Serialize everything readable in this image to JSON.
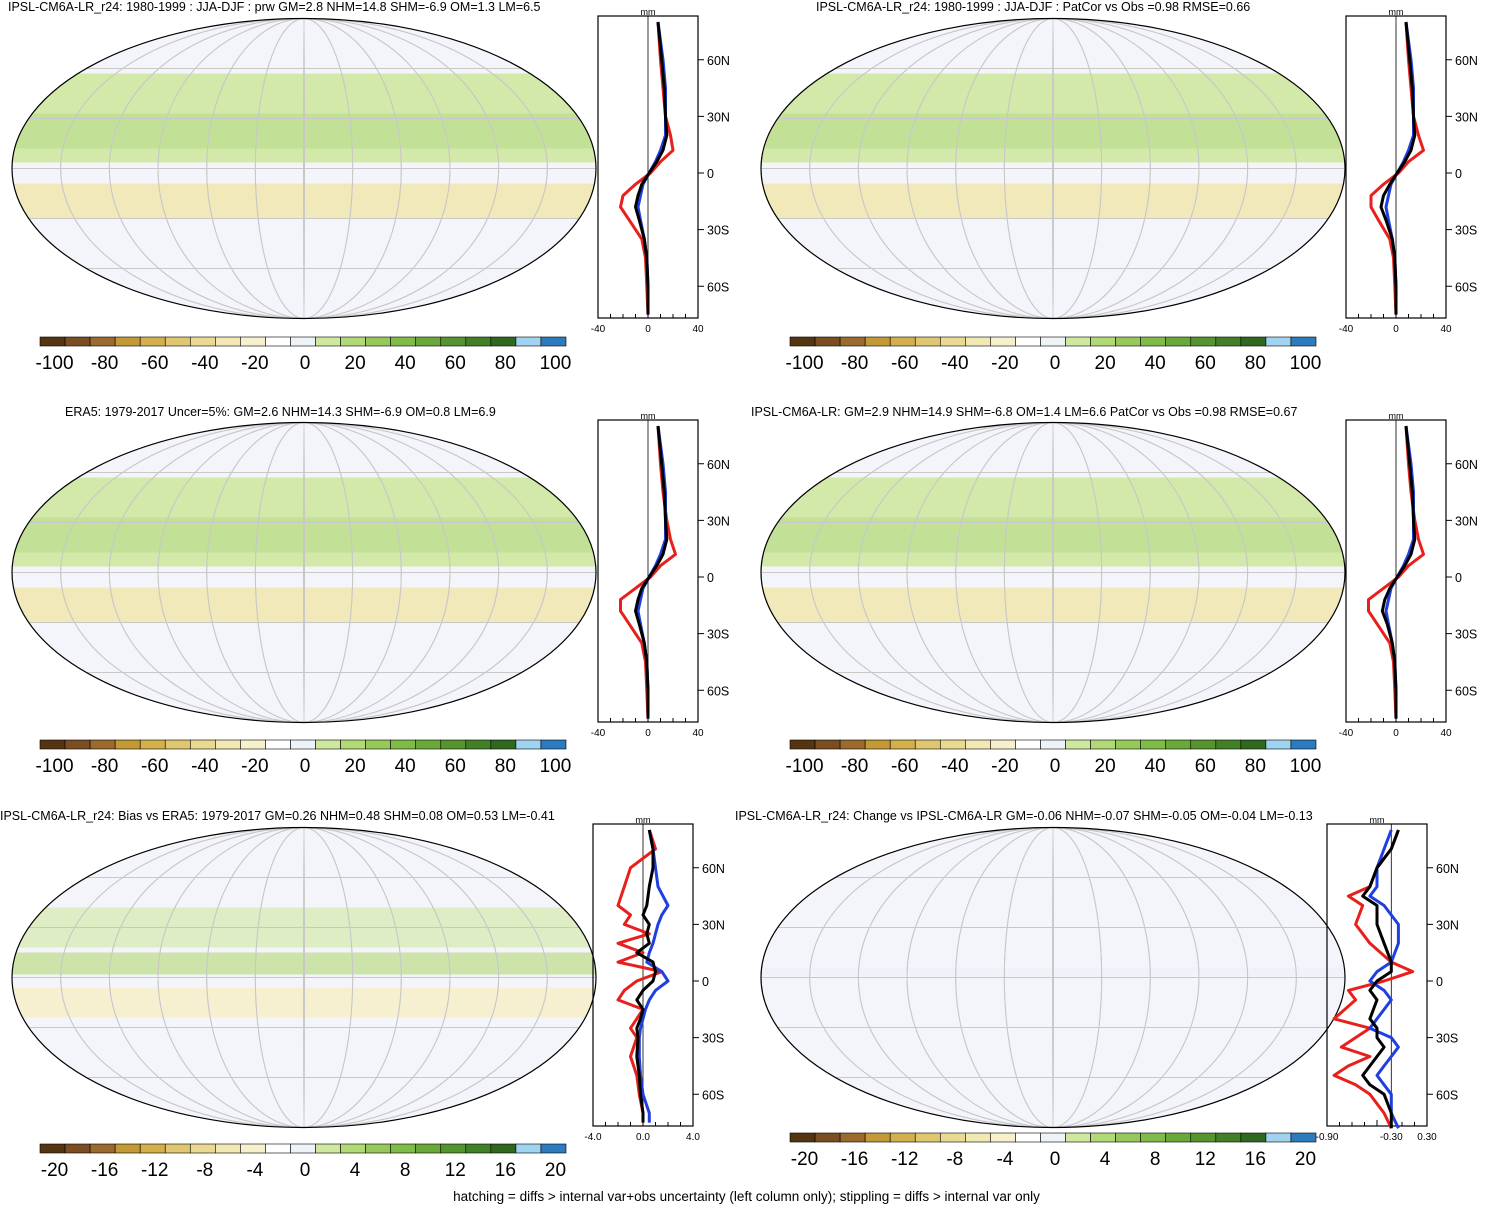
{
  "footer": "hatching = diffs > internal var+obs uncertainty (left column only); stippling = diffs > internal var only",
  "colors": {
    "ocean": "#f4f5fb",
    "land_line": "#000000",
    "grid": "#c8c8c8",
    "red_line": "#e8201c",
    "blue_line": "#1f3fe0",
    "black_line": "#000000"
  },
  "palette": [
    "#553511",
    "#7a4e22",
    "#9a6a2e",
    "#c39a36",
    "#d4b04d",
    "#dfc772",
    "#e9d992",
    "#f1e8b3",
    "#f6f0cc",
    "#ffffff",
    "#eef3f8",
    "#cfe8a0",
    "#b1d975",
    "#97c95a",
    "#7fbb47",
    "#6aa83a",
    "#559530",
    "#418027",
    "#30681f",
    "#9fd3f0",
    "#2c7bbf"
  ],
  "panels": [
    {
      "id": "p1",
      "title": "IPSL-CM6A-LR_r24: 1980-1999 : JJA-DJF : prw GM=2.8 NHM=14.8 SHM=-6.9 OM=1.3 LM=6.5",
      "colorbar_labels": [
        "-100",
        "-80",
        "-60",
        "-40",
        "-20",
        "0",
        "20",
        "40",
        "60",
        "80",
        "100"
      ],
      "profile": {
        "unit": "mm",
        "xlim": [
          -40,
          40
        ],
        "x_ticklabels": [
          "-40",
          "0",
          "40"
        ],
        "lat_ticklabels": [
          "60N",
          "30N",
          "0",
          "30S",
          "60S"
        ],
        "series": [
          {
            "color": "red",
            "lat": [
              80,
              60,
              45,
              30,
              20,
              12,
              6,
              0,
              -6,
              -12,
              -18,
              -25,
              -35,
              -45,
              -60,
              -75
            ],
            "values": [
              8,
              10,
              12,
              14,
              18,
              20,
              10,
              2,
              -10,
              -20,
              -22,
              -15,
              -5,
              -2,
              -1,
              0
            ]
          },
          {
            "color": "blue",
            "lat": [
              80,
              60,
              45,
              30,
              20,
              12,
              6,
              0,
              -6,
              -12,
              -18,
              -25,
              -35,
              -45,
              -60,
              -75
            ],
            "values": [
              8,
              12,
              14,
              14,
              14,
              10,
              6,
              1,
              -4,
              -6,
              -8,
              -6,
              -3,
              -1,
              0,
              0
            ]
          },
          {
            "color": "black",
            "lat": [
              80,
              60,
              45,
              30,
              20,
              12,
              6,
              0,
              -6,
              -12,
              -18,
              -25,
              -35,
              -45,
              -60,
              -75
            ],
            "values": [
              8,
              11,
              13,
              14,
              15,
              12,
              7,
              1,
              -5,
              -8,
              -10,
              -7,
              -3,
              -1,
              0,
              0
            ]
          }
        ]
      }
    },
    {
      "id": "p2",
      "title": "IPSL-CM6A-LR_r24: 1980-1999 : JJA-DJF : PatCor vs Obs =0.98 RMSE=0.66",
      "colorbar_labels": [
        "-100",
        "-80",
        "-60",
        "-40",
        "-20",
        "0",
        "20",
        "40",
        "60",
        "80",
        "100"
      ],
      "profile": {
        "unit": "mm",
        "xlim": [
          -40,
          40
        ],
        "x_ticklabels": [
          "-40",
          "0",
          "40"
        ],
        "lat_ticklabels": [
          "60N",
          "30N",
          "0",
          "30S",
          "60S"
        ],
        "series": [
          {
            "color": "red",
            "lat": [
              80,
              60,
              45,
              30,
              20,
              12,
              6,
              0,
              -6,
              -12,
              -18,
              -25,
              -35,
              -45,
              -60,
              -75
            ],
            "values": [
              8,
              10,
              12,
              14,
              18,
              22,
              10,
              2,
              -10,
              -20,
              -20,
              -14,
              -5,
              -2,
              -1,
              0
            ]
          },
          {
            "color": "blue",
            "lat": [
              80,
              60,
              45,
              30,
              20,
              12,
              6,
              0,
              -6,
              -12,
              -18,
              -25,
              -35,
              -45,
              -60,
              -75
            ],
            "values": [
              8,
              12,
              14,
              14,
              14,
              10,
              6,
              1,
              -4,
              -6,
              -8,
              -6,
              -3,
              -1,
              0,
              0
            ]
          },
          {
            "color": "black",
            "lat": [
              80,
              60,
              45,
              30,
              20,
              12,
              6,
              0,
              -6,
              -12,
              -18,
              -25,
              -35,
              -45,
              -60,
              -75
            ],
            "values": [
              8,
              11,
              13,
              14,
              15,
              12,
              7,
              1,
              -5,
              -10,
              -12,
              -8,
              -3,
              -1,
              0,
              0
            ]
          }
        ]
      }
    },
    {
      "id": "p3",
      "title": "ERA5: 1979-2017 Uncer=5%: GM=2.6 NHM=14.3 SHM=-6.9 OM=0.8 LM=6.9",
      "colorbar_labels": [
        "-100",
        "-80",
        "-60",
        "-40",
        "-20",
        "0",
        "20",
        "40",
        "60",
        "80",
        "100"
      ],
      "profile": {
        "unit": "mm",
        "xlim": [
          -40,
          40
        ],
        "x_ticklabels": [
          "-40",
          "0",
          "40"
        ],
        "lat_ticklabels": [
          "60N",
          "30N",
          "0",
          "30S",
          "60S"
        ],
        "series": [
          {
            "color": "red",
            "lat": [
              80,
              60,
              45,
              30,
              20,
              12,
              6,
              0,
              -6,
              -12,
              -18,
              -25,
              -35,
              -45,
              -60,
              -75
            ],
            "values": [
              8,
              10,
              12,
              15,
              18,
              22,
              10,
              2,
              -10,
              -22,
              -22,
              -15,
              -5,
              -2,
              -1,
              0
            ]
          },
          {
            "color": "blue",
            "lat": [
              80,
              60,
              45,
              30,
              20,
              12,
              6,
              0,
              -6,
              -12,
              -18,
              -25,
              -35,
              -45,
              -60,
              -75
            ],
            "values": [
              8,
              12,
              14,
              14,
              14,
              10,
              6,
              1,
              -4,
              -6,
              -8,
              -6,
              -3,
              -1,
              0,
              0
            ]
          },
          {
            "color": "black",
            "lat": [
              80,
              60,
              45,
              30,
              20,
              12,
              6,
              0,
              -6,
              -12,
              -18,
              -25,
              -35,
              -45,
              -60,
              -75
            ],
            "values": [
              8,
              11,
              13,
              14,
              15,
              12,
              7,
              1,
              -5,
              -8,
              -10,
              -7,
              -3,
              -1,
              0,
              0
            ]
          }
        ]
      }
    },
    {
      "id": "p4",
      "title": "IPSL-CM6A-LR: GM=2.9 NHM=14.9 SHM=-6.8 OM=1.4 LM=6.6 PatCor vs Obs =0.98 RMSE=0.67",
      "colorbar_labels": [
        "-100",
        "-80",
        "-60",
        "-40",
        "-20",
        "0",
        "20",
        "40",
        "60",
        "80",
        "100"
      ],
      "profile": {
        "unit": "mm",
        "xlim": [
          -40,
          40
        ],
        "x_ticklabels": [
          "-40",
          "0",
          "40"
        ],
        "lat_ticklabels": [
          "60N",
          "30N",
          "0",
          "30S",
          "60S"
        ],
        "series": [
          {
            "color": "red",
            "lat": [
              80,
              60,
              45,
              30,
              20,
              12,
              6,
              0,
              -6,
              -12,
              -18,
              -25,
              -35,
              -45,
              -60,
              -75
            ],
            "values": [
              8,
              10,
              12,
              15,
              18,
              22,
              10,
              2,
              -10,
              -22,
              -22,
              -15,
              -5,
              -2,
              -1,
              0
            ]
          },
          {
            "color": "blue",
            "lat": [
              80,
              60,
              45,
              30,
              20,
              12,
              6,
              0,
              -6,
              -12,
              -18,
              -25,
              -35,
              -45,
              -60,
              -75
            ],
            "values": [
              8,
              12,
              14,
              14,
              14,
              10,
              6,
              1,
              -4,
              -6,
              -8,
              -6,
              -3,
              -1,
              0,
              0
            ]
          },
          {
            "color": "black",
            "lat": [
              80,
              60,
              45,
              30,
              20,
              12,
              6,
              0,
              -6,
              -12,
              -18,
              -25,
              -35,
              -45,
              -60,
              -75
            ],
            "values": [
              8,
              11,
              13,
              14,
              15,
              12,
              7,
              1,
              -5,
              -9,
              -11,
              -7,
              -3,
              -1,
              0,
              0
            ]
          }
        ]
      }
    },
    {
      "id": "p5",
      "title": "IPSL-CM6A-LR_r24: Bias vs ERA5: 1979-2017 GM=0.26 NHM=0.48 SHM=0.08 OM=0.53 LM=-0.41",
      "colorbar_labels": [
        "-20",
        "-16",
        "-12",
        "-8",
        "-4",
        "0",
        "4",
        "8",
        "12",
        "16",
        "20"
      ],
      "profile": {
        "unit": "mm",
        "xlim": [
          -4,
          4
        ],
        "x_ticklabels": [
          "-4.0",
          "0.0",
          "4.0"
        ],
        "lat_ticklabels": [
          "60N",
          "30N",
          "0",
          "30S",
          "60S"
        ],
        "series": [
          {
            "color": "red",
            "lat": [
              80,
              70,
              60,
              50,
              40,
              35,
              30,
              25,
              20,
              15,
              10,
              5,
              0,
              -5,
              -10,
              -15,
              -20,
              -25,
              -30,
              -40,
              -50,
              -60,
              -70,
              -75
            ],
            "values": [
              0.5,
              1.0,
              -1.0,
              -1.5,
              -2.0,
              -1.0,
              -1.5,
              0.5,
              -2.0,
              0.0,
              -2.0,
              1.5,
              -0.5,
              -1.5,
              -2.0,
              0.0,
              -0.5,
              -1.0,
              -0.5,
              -1.0,
              -0.5,
              -0.3,
              0.0,
              0.0
            ]
          },
          {
            "color": "blue",
            "lat": [
              80,
              70,
              60,
              50,
              40,
              35,
              30,
              25,
              20,
              15,
              10,
              5,
              0,
              -5,
              -10,
              -15,
              -20,
              -25,
              -30,
              -40,
              -50,
              -60,
              -70,
              -75
            ],
            "values": [
              0.5,
              0.8,
              1.0,
              1.2,
              2.0,
              1.5,
              1.2,
              1.0,
              0.8,
              0.5,
              0.3,
              1.5,
              2.0,
              1.0,
              0.5,
              0.2,
              0.0,
              -0.2,
              -0.3,
              -0.3,
              -0.2,
              0.0,
              0.5,
              0.5
            ]
          },
          {
            "color": "black",
            "lat": [
              80,
              70,
              60,
              50,
              40,
              35,
              30,
              25,
              20,
              15,
              10,
              5,
              0,
              -5,
              -10,
              -15,
              -20,
              -25,
              -30,
              -40,
              -50,
              -60,
              -70,
              -75
            ],
            "values": [
              0.5,
              0.8,
              0.8,
              0.5,
              0.3,
              0.0,
              0.5,
              0.3,
              0.5,
              -0.5,
              0.8,
              1.0,
              0.8,
              0.0,
              -0.5,
              0.0,
              -0.2,
              -0.5,
              -0.4,
              -0.5,
              -0.3,
              -0.2,
              0.0,
              0.0
            ]
          }
        ]
      }
    },
    {
      "id": "p6",
      "title": "IPSL-CM6A-LR_r24: Change vs IPSL-CM6A-LR GM=-0.06 NHM=-0.07 SHM=-0.05 OM=-0.04 LM=-0.13",
      "colorbar_labels": [
        "-20",
        "-16",
        "-12",
        "-8",
        "-4",
        "0",
        "4",
        "8",
        "12",
        "16",
        "20"
      ],
      "profile": {
        "unit": "mm",
        "xlim": [
          -0.9,
          0.5
        ],
        "x_ticklabels": [
          "-0.90",
          "-0.30",
          "0.30"
        ],
        "lat_ticklabels": [
          "60N",
          "30N",
          "0",
          "30S",
          "60S"
        ],
        "series": [
          {
            "color": "red",
            "lat": [
              80,
              70,
              60,
              50,
              45,
              40,
              30,
              20,
              10,
              5,
              0,
              -5,
              -10,
              -20,
              -25,
              -30,
              -35,
              -40,
              -45,
              -50,
              -55,
              -60,
              -70,
              -78
            ],
            "values": [
              0.1,
              0.0,
              -0.2,
              -0.3,
              -0.6,
              -0.4,
              -0.5,
              -0.3,
              0.0,
              0.3,
              -0.1,
              -0.6,
              -0.5,
              -0.8,
              -0.3,
              -0.5,
              -0.7,
              -0.3,
              -0.6,
              -0.8,
              -0.5,
              -0.3,
              -0.1,
              0.0
            ]
          },
          {
            "color": "blue",
            "lat": [
              80,
              70,
              60,
              50,
              45,
              40,
              30,
              20,
              10,
              5,
              0,
              -5,
              -10,
              -20,
              -25,
              -30,
              -35,
              -40,
              -45,
              -50,
              -55,
              -60,
              -70,
              -78
            ],
            "values": [
              0.0,
              -0.1,
              -0.2,
              -0.2,
              -0.3,
              -0.1,
              0.1,
              0.1,
              0.0,
              -0.2,
              -0.3,
              -0.1,
              0.0,
              -0.2,
              -0.3,
              0.0,
              0.1,
              0.0,
              -0.1,
              -0.2,
              -0.1,
              0.0,
              0.0,
              0.1
            ]
          },
          {
            "color": "black",
            "lat": [
              80,
              70,
              60,
              50,
              45,
              40,
              30,
              20,
              10,
              5,
              0,
              -5,
              -10,
              -20,
              -25,
              -30,
              -35,
              -40,
              -45,
              -50,
              -55,
              -60,
              -70,
              -78
            ],
            "values": [
              0.1,
              0.0,
              -0.2,
              -0.3,
              -0.4,
              -0.2,
              -0.2,
              -0.1,
              0.0,
              0.0,
              -0.2,
              -0.3,
              -0.2,
              -0.3,
              -0.2,
              -0.2,
              -0.1,
              -0.2,
              -0.3,
              -0.4,
              -0.3,
              -0.1,
              0.0,
              0.0
            ]
          }
        ]
      }
    }
  ],
  "chart_data": {
    "type": "heatmap",
    "description_source": "six global maps with zonal mean profiles",
    "series_colors": [
      "red",
      "blue",
      "black"
    ]
  }
}
